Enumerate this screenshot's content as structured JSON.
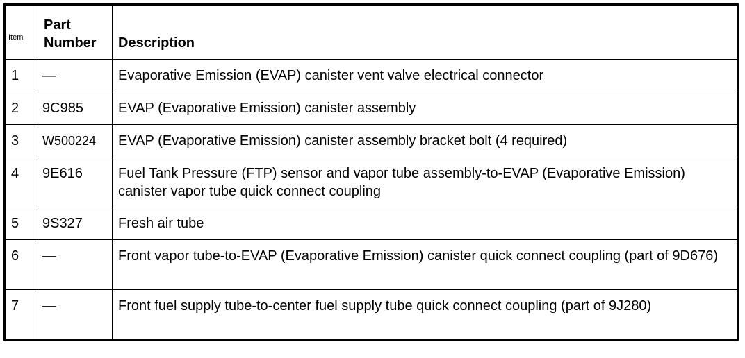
{
  "table": {
    "headers": {
      "item": "Item",
      "part_number_line1": "Part",
      "part_number_line2": "Number",
      "description": "Description"
    },
    "rows": [
      {
        "item": "1",
        "part_number": "—",
        "description": "Evaporative Emission (EVAP) canister vent valve electrical connector"
      },
      {
        "item": "2",
        "part_number": "9C985",
        "description": "EVAP (Evaporative Emission) canister assembly"
      },
      {
        "item": "3",
        "part_number": "W500224",
        "description": "EVAP (Evaporative Emission) canister assembly bracket bolt (4 required)"
      },
      {
        "item": "4",
        "part_number": "9E616",
        "description": "Fuel Tank Pressure (FTP) sensor and vapor tube assembly-to-EVAP (Evaporative Emission) canister vapor tube quick connect coupling"
      },
      {
        "item": "5",
        "part_number": "9S327",
        "description": "Fresh air tube"
      },
      {
        "item": "6",
        "part_number": "—",
        "description": "Front vapor tube-to-EVAP (Evaporative Emission) canister quick connect coupling (part of 9D676)"
      },
      {
        "item": "7",
        "part_number": "—",
        "description": "Front fuel supply tube-to-center fuel supply tube quick connect coupling (part of 9J280)"
      }
    ]
  }
}
